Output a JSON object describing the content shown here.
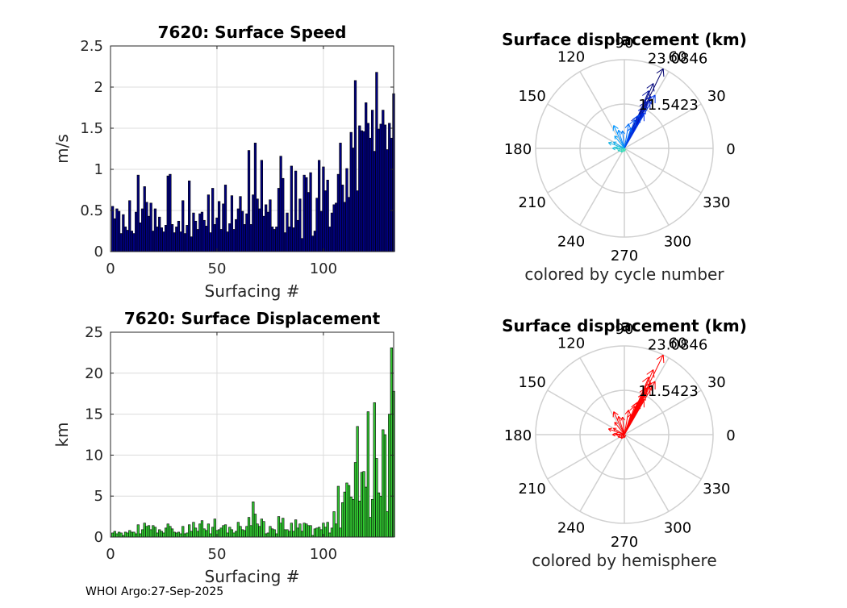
{
  "footer": "WHOI Argo:27-Sep-2025",
  "chart_data": [
    {
      "type": "bar",
      "title": "7620: Surface Speed",
      "xlabel": "Surfacing #",
      "ylabel": "m/s",
      "xlim": [
        0,
        133
      ],
      "ylim": [
        0,
        2.5
      ],
      "xticks": [
        0,
        50,
        100
      ],
      "yticks": [
        0,
        0.5,
        1,
        1.5,
        2,
        2.5
      ],
      "ytick_labels": [
        "0",
        "0.5",
        "1",
        "1.5",
        "2",
        "2.5"
      ],
      "bar_color": "#000080",
      "values": [
        0.55,
        0.4,
        0.52,
        0.49,
        0.22,
        0.45,
        0.3,
        0.26,
        0.62,
        0.25,
        0.22,
        0.48,
        0.93,
        0.35,
        0.52,
        0.79,
        0.6,
        0.43,
        0.59,
        0.25,
        0.52,
        0.3,
        0.42,
        0.29,
        0.24,
        0.32,
        0.92,
        0.94,
        0.33,
        0.23,
        0.3,
        0.37,
        0.24,
        0.62,
        0.22,
        0.32,
        0.86,
        0.18,
        0.47,
        0.37,
        0.27,
        0.46,
        0.48,
        0.38,
        0.31,
        0.69,
        0.23,
        0.77,
        0.33,
        0.41,
        0.61,
        0.27,
        0.58,
        0.81,
        0.24,
        0.34,
        0.68,
        0.27,
        0.39,
        0.52,
        0.67,
        0.49,
        0.33,
        0.46,
        1.23,
        0.33,
        0.69,
        1.32,
        0.64,
        0.52,
        1.11,
        0.43,
        0.57,
        0.48,
        0.63,
        0.3,
        0.27,
        0.3,
        0.77,
        1.16,
        0.89,
        0.23,
        0.47,
        0.3,
        1.04,
        0.29,
        0.98,
        0.38,
        0.64,
        0.16,
        0.93,
        0.9,
        0.72,
        0.96,
        0.19,
        0.25,
        0.65,
        1.11,
        0.49,
        1.03,
        0.74,
        0.87,
        0.3,
        0.47,
        0.57,
        0.59,
        0.94,
        1.32,
        0.81,
        0.6,
        1.01,
        0.66,
        1.45,
        1.26,
        2.08,
        0.74,
        1.53,
        1.47,
        1.46,
        1.81,
        1.56,
        1.38,
        1.72,
        1.22,
        2.18,
        1.49,
        1.55,
        1.72,
        1.54,
        1.24,
        1.56,
        1.38,
        1.92
      ]
    },
    {
      "type": "bar",
      "title": "7620: Surface Displacement",
      "xlabel": "Surfacing #",
      "ylabel": "km",
      "xlim": [
        0,
        133
      ],
      "ylim": [
        0,
        25
      ],
      "xticks": [
        0,
        50,
        100
      ],
      "yticks": [
        0,
        5,
        10,
        15,
        20,
        25
      ],
      "ytick_labels": [
        "0",
        "5",
        "10",
        "15",
        "20",
        "25"
      ],
      "bar_color": "#33cc33",
      "values": [
        0.5,
        0.7,
        0.4,
        0.6,
        0.5,
        0.2,
        0.6,
        0.5,
        0.8,
        0.6,
        0.6,
        0.4,
        1.5,
        0.4,
        0.9,
        1.7,
        1.3,
        1.4,
        0.9,
        1.4,
        1.2,
        0.5,
        0.9,
        0.7,
        0.5,
        1.1,
        1.6,
        1.3,
        1.0,
        0.6,
        0.5,
        0.6,
        0.4,
        1.3,
        0.4,
        0.5,
        1.5,
        0.7,
        1.8,
        1.1,
        0.7,
        1.6,
        2.0,
        1.0,
        0.8,
        1.6,
        0.4,
        1.2,
        2.2,
        0.8,
        0.9,
        1.1,
        1.4,
        1.5,
        0.5,
        1.2,
        0.9,
        0.5,
        0.7,
        1.8,
        1.3,
        0.9,
        0.8,
        1.3,
        2.4,
        1.4,
        4.3,
        2.8,
        1.6,
        1.3,
        2.2,
        1.9,
        0.4,
        0.5,
        1.3,
        1.0,
        0.9,
        0.4,
        2.5,
        1.7,
        2.3,
        0.9,
        0.9,
        0.7,
        1.7,
        0.7,
        2.1,
        1.1,
        1.6,
        0.7,
        1.7,
        1.6,
        1.4,
        1.4,
        0.2,
        1.0,
        1.1,
        1.2,
        0.9,
        1.7,
        1.2,
        1.8,
        0.5,
        1.1,
        3.1,
        1.6,
        6.2,
        1.1,
        4.2,
        5.5,
        6.6,
        6.3,
        4.9,
        4.6,
        9.1,
        13.5,
        4.4,
        7.9,
        8.0,
        6.1,
        15.3,
        2.4,
        4.6,
        16.4,
        9.6,
        5.4,
        5.0,
        13.1,
        12.5,
        3.1,
        15.0,
        23.1,
        17.8
      ]
    },
    {
      "type": "polar-arrows",
      "title": "Surface displacement (km)",
      "caption": "colored by cycle number",
      "r_max": 23.0846,
      "ring_labels": [
        "11.5423",
        "23.0846"
      ],
      "angle_labels": [
        "0",
        "30",
        "60",
        "90",
        "120",
        "150",
        "180",
        "210",
        "240",
        "270",
        "300",
        "330"
      ],
      "colormap": "cycle-number (blue → cyan)",
      "vectors": [
        [
          23.08,
          64
        ],
        [
          18.5,
          66
        ],
        [
          15.2,
          63
        ],
        [
          16.3,
          67
        ],
        [
          13.5,
          65
        ],
        [
          9.0,
          68
        ],
        [
          14.1,
          62
        ],
        [
          12.2,
          64
        ],
        [
          10.5,
          61
        ],
        [
          16.0,
          60
        ],
        [
          9.6,
          66
        ],
        [
          7.9,
          70
        ],
        [
          5.6,
          72
        ],
        [
          6.5,
          80
        ],
        [
          4.6,
          96
        ],
        [
          5.0,
          108
        ],
        [
          6.6,
          115
        ],
        [
          4.1,
          128
        ],
        [
          3.3,
          150
        ],
        [
          4.4,
          160
        ],
        [
          3.1,
          180
        ],
        [
          2.4,
          175
        ],
        [
          1.8,
          200
        ],
        [
          1.3,
          230
        ],
        [
          0.8,
          270
        ]
      ]
    },
    {
      "type": "polar-arrows",
      "title": "Surface displacement (km)",
      "caption": "colored by hemisphere",
      "r_max": 23.0846,
      "ring_labels": [
        "11.5423",
        "23.0846"
      ],
      "angle_labels": [
        "0",
        "30",
        "60",
        "90",
        "120",
        "150",
        "180",
        "210",
        "240",
        "270",
        "300",
        "330"
      ],
      "arrow_color": "#ff0000",
      "vectors": [
        [
          23.08,
          64
        ],
        [
          18.5,
          66
        ],
        [
          15.2,
          63
        ],
        [
          16.3,
          67
        ],
        [
          13.5,
          65
        ],
        [
          9.0,
          68
        ],
        [
          14.1,
          62
        ],
        [
          12.2,
          64
        ],
        [
          10.5,
          61
        ],
        [
          16.0,
          60
        ],
        [
          9.6,
          66
        ],
        [
          7.9,
          70
        ],
        [
          5.6,
          72
        ],
        [
          6.5,
          80
        ],
        [
          4.6,
          96
        ],
        [
          5.0,
          108
        ],
        [
          6.6,
          115
        ],
        [
          4.1,
          128
        ],
        [
          3.3,
          150
        ],
        [
          4.4,
          160
        ],
        [
          3.1,
          180
        ],
        [
          2.4,
          175
        ],
        [
          1.8,
          200
        ],
        [
          1.3,
          230
        ],
        [
          0.8,
          270
        ]
      ]
    }
  ]
}
